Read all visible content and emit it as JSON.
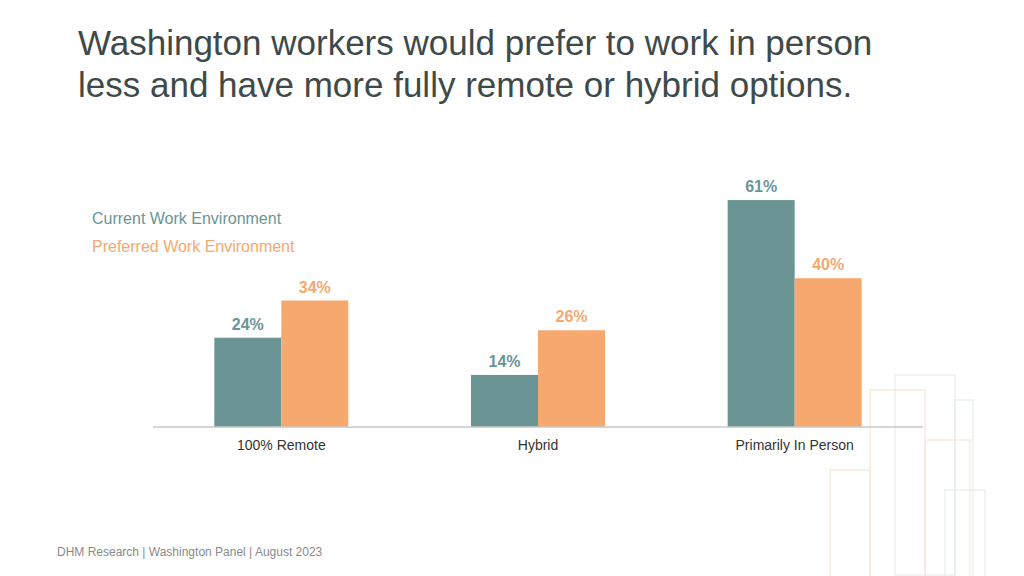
{
  "chart_data": {
    "type": "bar",
    "title": "Washington workers would prefer to work in person less and have more fully remote or hybrid options.",
    "categories": [
      "100% Remote",
      "Hybrid",
      "Primarily In Person"
    ],
    "series": [
      {
        "name": "Current Work Environment",
        "color": "#6b9595",
        "values": [
          24,
          14,
          61
        ],
        "value_labels": [
          "24%",
          "14%",
          "61%"
        ]
      },
      {
        "name": "Preferred Work Environment",
        "color": "#f6a86e",
        "values": [
          34,
          26,
          40
        ],
        "value_labels": [
          "34%",
          "26%",
          "40%"
        ]
      }
    ],
    "ylim": [
      0,
      70
    ],
    "data_labels": true,
    "tick_labels": "x",
    "legend": "upper-left",
    "grid": false,
    "annotations": [
      "DHM Research | Washington Panel | August 2023"
    ]
  }
}
